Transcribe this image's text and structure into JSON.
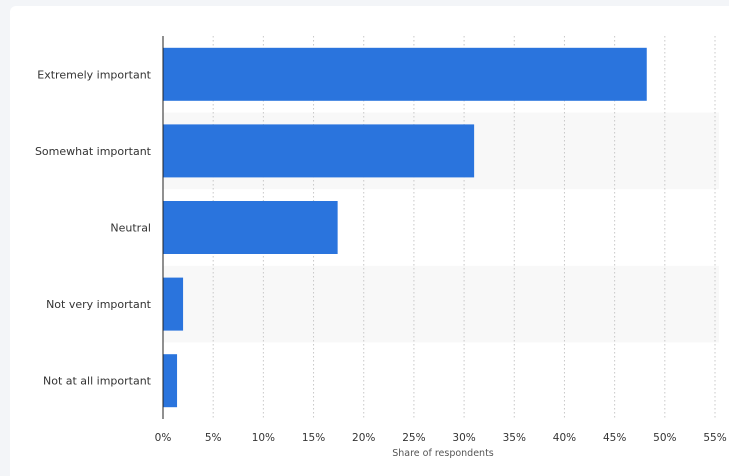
{
  "chart_data": {
    "type": "bar",
    "orientation": "horizontal",
    "categories": [
      "Extremely important",
      "Somewhat important",
      "Neutral",
      "Not very important",
      "Not at all important"
    ],
    "values": [
      48.2,
      31.0,
      17.4,
      2.0,
      1.4
    ],
    "xlabel": "Share of respondents",
    "xlim": [
      0,
      55
    ],
    "xticks": [
      "0%",
      "5%",
      "10%",
      "15%",
      "20%",
      "25%",
      "30%",
      "35%",
      "40%",
      "45%",
      "50%",
      "55%"
    ],
    "grid": true,
    "bar_color": "#2a74dd",
    "band_color": "#f8f8f8"
  }
}
